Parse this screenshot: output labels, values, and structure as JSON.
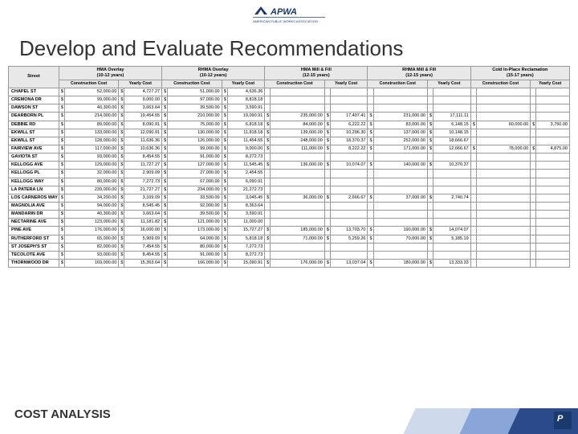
{
  "brand": {
    "name": "APWA",
    "tagline": "AMERICAN PUBLIC WORKS ASSOCIATION"
  },
  "title": "Develop and Evaluate Recommendations",
  "footer": "COST ANALYSIS",
  "colors": {
    "stripe1": "#2a4a8a",
    "stripe2": "#8aa6d8",
    "stripe3": "#cfd9ec",
    "badge": "#1a3a6e",
    "title": "#333333",
    "header_bg": "#e8e8e8"
  },
  "table": {
    "street_header": "Street",
    "methods": [
      {
        "name": "HMA Overlay",
        "life": "(10-12 years)"
      },
      {
        "name": "RHMA Overlay",
        "life": "(10-12 years)"
      },
      {
        "name": "HMA Mill & Fill",
        "life": "(12-15 years)"
      },
      {
        "name": "RHMA Mill & Fill",
        "life": "(12-15 years)"
      },
      {
        "name": "Cold In-Place Reclamation",
        "life": "(15-17 years)"
      }
    ],
    "sub_cols": [
      "Construction Cost",
      "Yearly Cost"
    ],
    "rows": [
      {
        "street": "CHAPEL ST",
        "v": [
          "52,000.00",
          "4,727.27",
          "51,000.00",
          "4,636.36",
          "",
          "",
          "",
          "",
          "",
          ""
        ]
      },
      {
        "street": "CREMONA DR",
        "v": [
          "99,000.00",
          "9,000.00",
          "97,000.00",
          "8,818.18",
          "",
          "",
          "",
          "",
          "",
          ""
        ]
      },
      {
        "street": "DAWSON ST",
        "v": [
          "40,300.00",
          "3,663.64",
          "39,500.00",
          "3,590.91",
          "",
          "",
          "",
          "",
          "",
          ""
        ]
      },
      {
        "street": "DEARBORN PL",
        "v": [
          "214,000.00",
          "19,454.55",
          "210,000.00",
          "19,090.91",
          "235,000.00",
          "17,407.41",
          "231,000.00",
          "17,111.11",
          "",
          ""
        ]
      },
      {
        "street": "DEBBIE RD",
        "v": [
          "89,000.00",
          "8,090.91",
          "75,000.00",
          "6,818.18",
          "84,000.00",
          "6,222.22",
          "83,000.00",
          "6,148.15",
          "60,000.00",
          "3,750.00"
        ]
      },
      {
        "street": "EKWILL ST",
        "v": [
          "133,000.00",
          "12,090.91",
          "130,000.00",
          "11,818.18",
          "139,000.00",
          "10,296.30",
          "137,000.00",
          "10,148.15",
          "",
          ""
        ]
      },
      {
        "street": "EKWILL ST",
        "v": [
          "128,000.00",
          "11,636.36",
          "126,000.00",
          "11,454.55",
          "248,000.00",
          "18,370.37",
          "252,000.00",
          "18,666.67",
          "",
          ""
        ]
      },
      {
        "street": "FAIRVIEW AVE",
        "v": [
          "117,000.00",
          "10,636.36",
          "99,000.00",
          "9,000.00",
          "111,000.00",
          "8,222.22",
          "171,000.00",
          "12,666.67",
          "78,000.00",
          "4,875.00"
        ]
      },
      {
        "street": "GAVIOTA ST",
        "v": [
          "93,000.00",
          "8,454.55",
          "91,000.00",
          "8,272.73",
          "",
          "",
          "",
          "",
          "",
          ""
        ]
      },
      {
        "street": "KELLOGG AVE",
        "v": [
          "129,000.00",
          "11,727.27",
          "127,000.00",
          "11,545.45",
          "136,000.00",
          "10,074.07",
          "140,000.00",
          "10,370.37",
          "",
          ""
        ]
      },
      {
        "street": "KELLOGG PL",
        "v": [
          "32,000.00",
          "2,909.09",
          "27,000.00",
          "2,454.55",
          "",
          "",
          "",
          "",
          "",
          ""
        ]
      },
      {
        "street": "KELLOGG WAY",
        "v": [
          "80,000.00",
          "7,272.73",
          "67,000.00",
          "6,090.91",
          "",
          "",
          "",
          "",
          "",
          ""
        ]
      },
      {
        "street": "LA PATERA LN",
        "v": [
          "239,000.00",
          "21,727.27",
          "234,000.00",
          "21,272.73",
          "",
          "",
          "",
          "",
          "",
          ""
        ]
      },
      {
        "street": "LOS CARNEROS WAY",
        "v": [
          "34,200.00",
          "3,109.09",
          "33,500.00",
          "3,045.45",
          "36,000.00",
          "2,666.67",
          "37,000.00",
          "2,740.74",
          "",
          ""
        ]
      },
      {
        "street": "MAGNOLIA AVE",
        "v": [
          "94,000.00",
          "8,545.45",
          "92,000.00",
          "8,363.64",
          "",
          "",
          "",
          "",
          "",
          ""
        ]
      },
      {
        "street": "MANDARIN DR",
        "v": [
          "40,300.00",
          "3,663.64",
          "39,500.00",
          "3,590.91",
          "",
          "",
          "",
          "",
          "",
          ""
        ]
      },
      {
        "street": "NECTARINE AVE",
        "v": [
          "123,000.00",
          "11,181.82",
          "121,000.00",
          "11,000.00",
          "",
          "",
          "",
          "",
          "",
          ""
        ]
      },
      {
        "street": "PINE AVE",
        "v": [
          "176,000.00",
          "16,000.00",
          "173,000.00",
          "15,727.27",
          "185,000.00",
          "13,703.70",
          "190,000.00",
          "14,074.07",
          "",
          ""
        ]
      },
      {
        "street": "RUTHERFORD ST",
        "v": [
          "65,000.00",
          "5,909.09",
          "64,000.00",
          "5,818.18",
          "71,000.00",
          "5,259.26",
          "70,000.00",
          "5,185.19",
          "",
          ""
        ]
      },
      {
        "street": "ST JOSEPH'S ST",
        "v": [
          "82,000.00",
          "7,454.55",
          "80,000.00",
          "7,272.73",
          "",
          "",
          "",
          "",
          "",
          ""
        ]
      },
      {
        "street": "TECOLOTE AVE",
        "v": [
          "93,000.00",
          "8,454.55",
          "91,000.00",
          "8,272.73",
          "",
          "",
          "",
          "",
          "",
          ""
        ]
      },
      {
        "street": "THORNWOOD DR",
        "v": [
          "169,000.00",
          "15,363.64",
          "166,000.00",
          "15,090.91",
          "176,000.00",
          "13,037.04",
          "180,000.00",
          "13,333.33",
          "",
          ""
        ]
      }
    ]
  }
}
